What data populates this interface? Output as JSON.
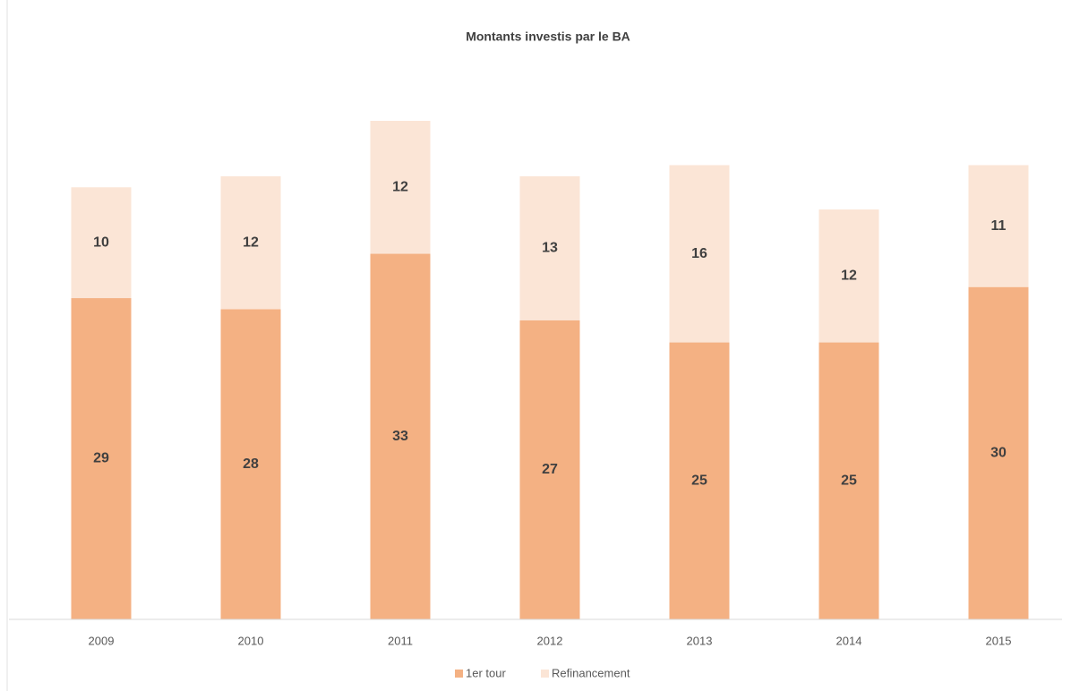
{
  "chart_data": {
    "type": "stacked_bar",
    "title": "Montants investis par le BA",
    "categories": [
      "2009",
      "2010",
      "2011",
      "2012",
      "2013",
      "2014",
      "2015"
    ],
    "series": [
      {
        "name": "1er tour",
        "color": "#f4b183",
        "values": [
          29,
          28,
          33,
          27,
          25,
          25,
          30
        ]
      },
      {
        "name": "Refinancement",
        "color": "#fbe5d6",
        "values": [
          10,
          12,
          12,
          13,
          16,
          12,
          11
        ]
      }
    ],
    "legend": "bottom"
  }
}
